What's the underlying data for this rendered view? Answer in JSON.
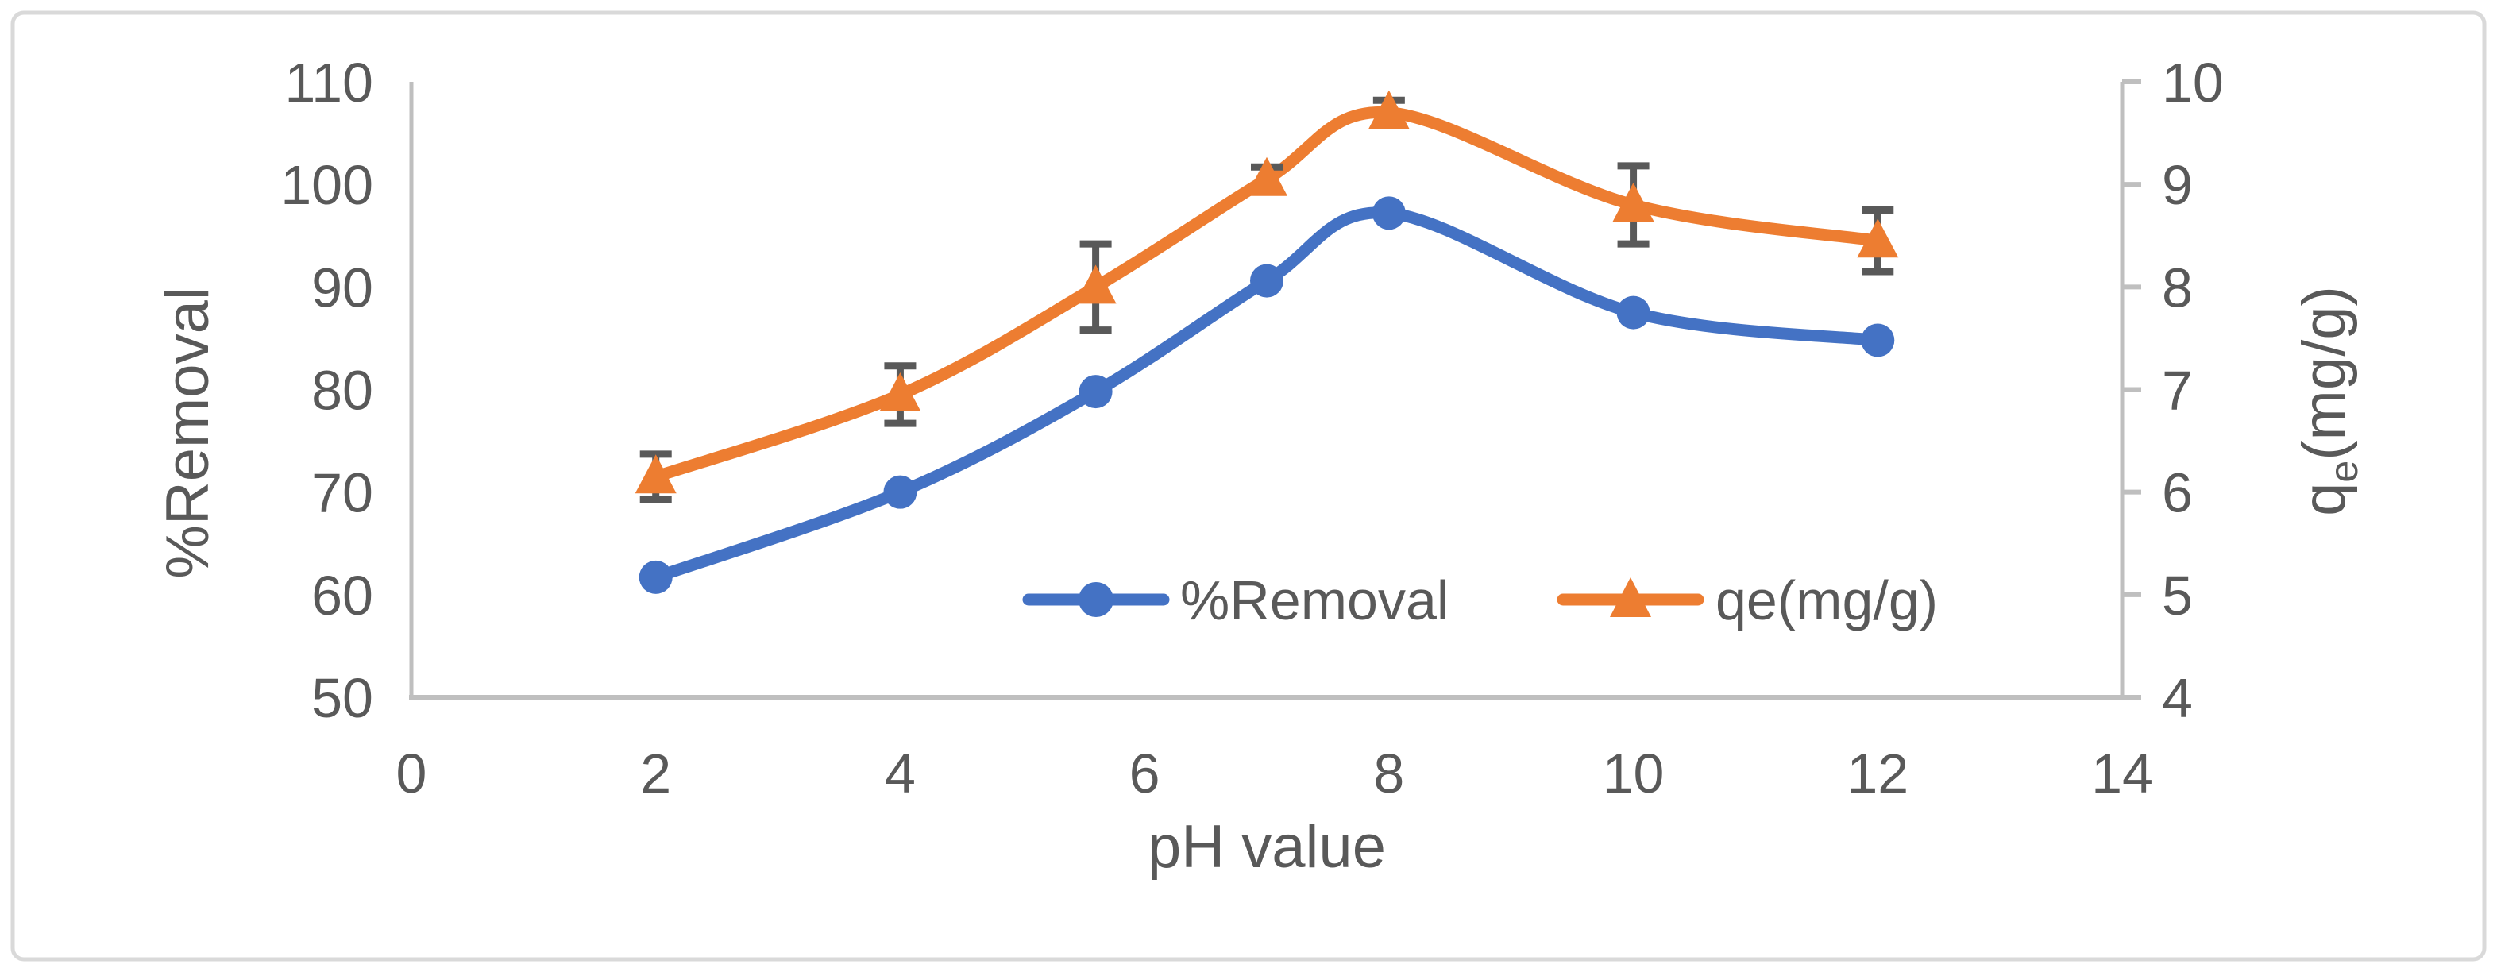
{
  "chart_data": {
    "type": "line",
    "x": [
      2,
      4,
      5.6,
      7,
      8,
      10,
      12
    ],
    "x_axis": {
      "title": "pH value",
      "ticks": [
        0,
        2,
        4,
        6,
        8,
        10,
        12,
        14
      ],
      "range": [
        0,
        14
      ]
    },
    "left_axis": {
      "title": "%Removal",
      "ticks": [
        110,
        100,
        90,
        80,
        70,
        60,
        50
      ],
      "range": [
        50,
        110
      ]
    },
    "right_axis": {
      "title_base": "q",
      "title_sub": "e",
      "title_units": "(mg/g)",
      "ticks": [
        10,
        9,
        8,
        7,
        6,
        5,
        4
      ],
      "range": [
        4,
        10
      ]
    },
    "series": [
      {
        "name": "%Removal",
        "axis": "left",
        "marker": "circle",
        "color": "#4472c4",
        "values": [
          61.7,
          70,
          79.8,
          90.6,
          97.2,
          87.5,
          84.8
        ]
      },
      {
        "name": "qe(mg/g)",
        "axis": "right",
        "marker": "triangle",
        "color": "#ed7d31",
        "values": [
          6.15,
          6.95,
          8.0,
          9.05,
          9.7,
          8.8,
          8.45
        ],
        "errors": [
          0.22,
          0.28,
          0.42,
          0.12,
          0.12,
          0.38,
          0.3
        ]
      }
    ],
    "legend": {
      "position": "inside-bottom",
      "items": [
        {
          "label": "%Removal"
        },
        {
          "label": "qe(mg/g)"
        }
      ]
    },
    "grid": false,
    "smooth_lines": true,
    "colors": {
      "axis": "#bfbfbf",
      "text": "#595959",
      "error_bars": "#595959",
      "frame": "#d9d9d9",
      "background": "#ffffff"
    }
  }
}
